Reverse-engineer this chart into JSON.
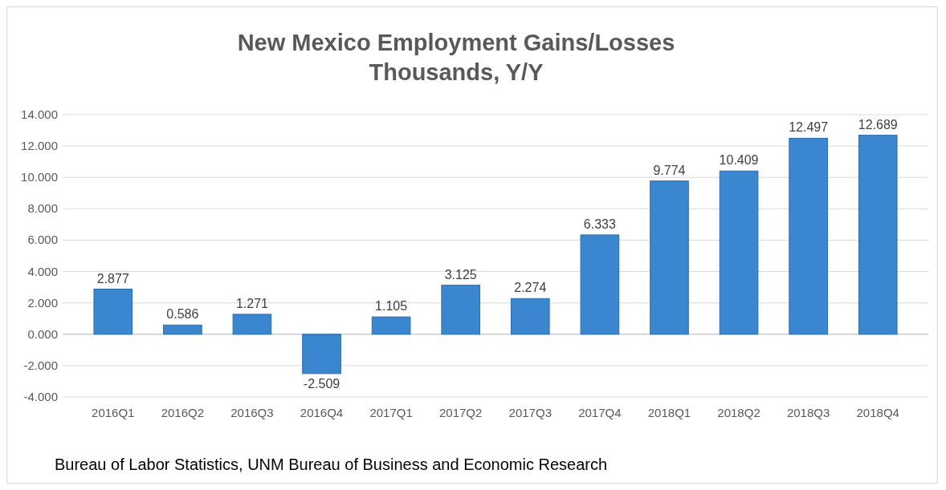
{
  "chart_data": {
    "type": "bar",
    "title": "New Mexico Employment Gains/Losses",
    "subtitle": "Thousands, Y/Y",
    "categories": [
      "2016Q1",
      "2016Q2",
      "2016Q3",
      "2016Q4",
      "2017Q1",
      "2017Q2",
      "2017Q3",
      "2017Q4",
      "2018Q1",
      "2018Q2",
      "2018Q3",
      "2018Q4"
    ],
    "values": [
      2.877,
      0.586,
      1.271,
      -2.509,
      1.105,
      3.125,
      2.274,
      6.333,
      9.774,
      10.409,
      12.497,
      12.689
    ],
    "color": "#3a86cf",
    "ylim": [
      -4,
      14
    ],
    "yticks": [
      {
        "value": -4,
        "label": "-4.000"
      },
      {
        "value": -2,
        "label": "-2.000"
      },
      {
        "value": 0,
        "label": "0.000"
      },
      {
        "value": 2,
        "label": "2.000"
      },
      {
        "value": 4,
        "label": "4.000"
      },
      {
        "value": 6,
        "label": "6.000"
      },
      {
        "value": 8,
        "label": "8.000"
      },
      {
        "value": 10,
        "label": "10.000"
      },
      {
        "value": 12,
        "label": "12.000"
      },
      {
        "value": 14,
        "label": "14.000"
      }
    ],
    "grid": "y",
    "data_labels": true,
    "annotations": [
      "Bureau of Labor Statistics,  UNM Bureau of Business and Economic Research"
    ]
  }
}
